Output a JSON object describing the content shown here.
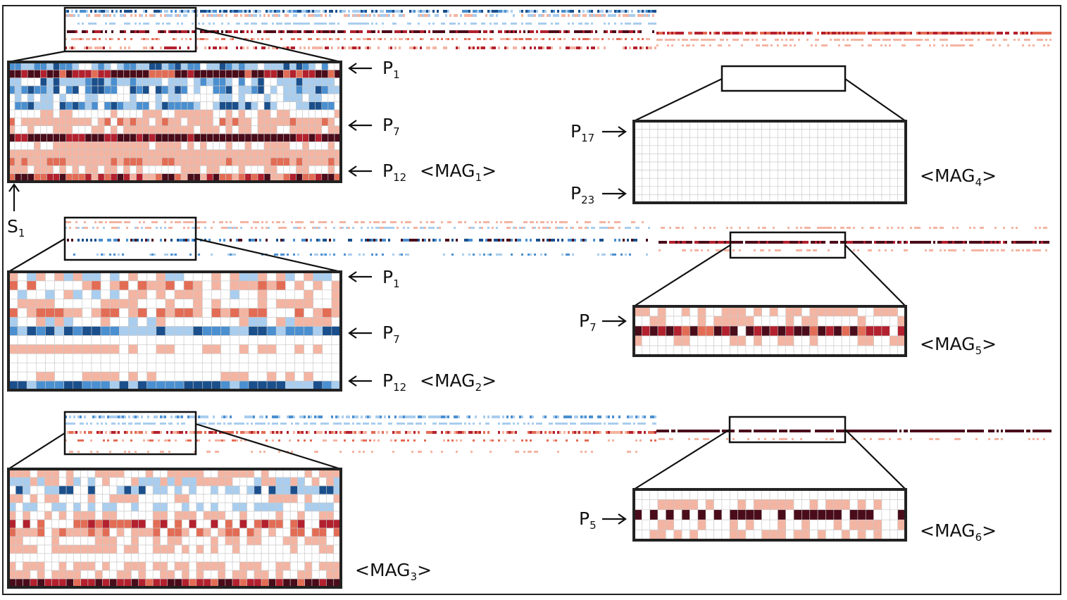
{
  "figure": {
    "colors": {
      "blue_dark": "#1a4f8c",
      "blue_mid": "#4a8fd0",
      "blue_light": "#a9cdee",
      "white": "#ffffff",
      "red_light": "#f4b4a2",
      "red_mid": "#e36c55",
      "red_dark": "#b3202e",
      "maroon": "#4a0c1a",
      "grid_line": "#c8c8c8",
      "border": "#222222"
    },
    "start_label": {
      "letter": "S",
      "sub": "1"
    },
    "panels": [
      {
        "mag": {
          "prefix": "<MAG",
          "sub": "1",
          "suffix": ">"
        },
        "row_labels": [
          {
            "letter": "P",
            "sub": "1"
          },
          {
            "letter": "P",
            "sub": "7"
          },
          {
            "letter": "P",
            "sub": "12"
          }
        ]
      },
      {
        "mag": {
          "prefix": "<MAG",
          "sub": "2",
          "suffix": ">"
        },
        "row_labels": [
          {
            "letter": "P",
            "sub": "1"
          },
          {
            "letter": "P",
            "sub": "7"
          },
          {
            "letter": "P",
            "sub": "12"
          }
        ]
      },
      {
        "mag": {
          "prefix": "<MAG",
          "sub": "3",
          "suffix": ">"
        },
        "row_labels": []
      },
      {
        "mag": {
          "prefix": "<MAG",
          "sub": "4",
          "suffix": ">"
        },
        "row_labels": [
          {
            "letter": "P",
            "sub": "17"
          },
          {
            "letter": "P",
            "sub": "23"
          }
        ]
      },
      {
        "mag": {
          "prefix": "<MAG",
          "sub": "5",
          "suffix": ">"
        },
        "row_labels": [
          {
            "letter": "P",
            "sub": "7"
          }
        ]
      },
      {
        "mag": {
          "prefix": "<MAG",
          "sub": "6",
          "suffix": ">"
        },
        "row_labels": [
          {
            "letter": "P",
            "sub": "5"
          }
        ]
      }
    ]
  }
}
